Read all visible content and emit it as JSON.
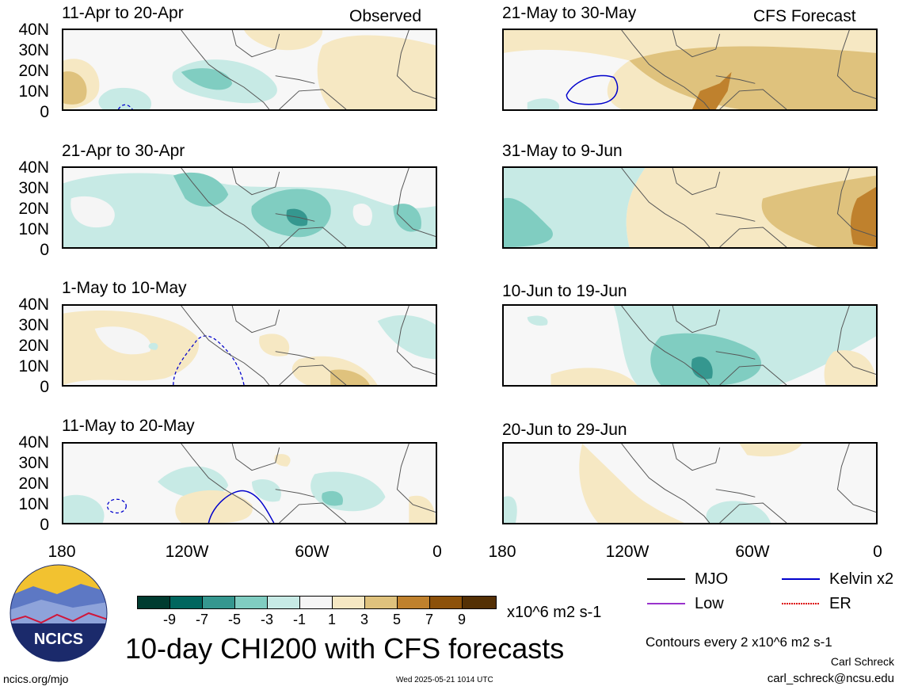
{
  "panels": [
    {
      "id": "p1",
      "label": "11-Apr to 20-Apr",
      "tag": "Observed"
    },
    {
      "id": "p2",
      "label": "21-May to 30-May",
      "tag": "CFS Forecast"
    },
    {
      "id": "p3",
      "label": "21-Apr to 30-Apr",
      "tag": ""
    },
    {
      "id": "p4",
      "label": "31-May to 9-Jun",
      "tag": ""
    },
    {
      "id": "p5",
      "label": "1-May to 10-May",
      "tag": ""
    },
    {
      "id": "p6",
      "label": "10-Jun to 19-Jun",
      "tag": ""
    },
    {
      "id": "p7",
      "label": "11-May to 20-May",
      "tag": ""
    },
    {
      "id": "p8",
      "label": "20-Jun to 29-Jun",
      "tag": ""
    }
  ],
  "lat_labels": [
    "40N",
    "30N",
    "20N",
    "10N",
    "0"
  ],
  "lon_labels": [
    "180",
    "120W",
    "60W",
    "0"
  ],
  "colorbar": {
    "colors": [
      "#003c30",
      "#01665e",
      "#35978f",
      "#80cdc1",
      "#c7eae5",
      "#f5f5f5",
      "#f6e8c3",
      "#dfc27d",
      "#bf812d",
      "#8c510a",
      "#543005"
    ],
    "tick_labels": [
      "-9",
      "-7",
      "-5",
      "-3",
      "-1",
      "1",
      "3",
      "5",
      "7",
      "9"
    ],
    "units": "x10^6 m2 s-1"
  },
  "legend": {
    "mjo": {
      "label": "MJO",
      "color": "#000000"
    },
    "kelvin": {
      "label": "Kelvin x2",
      "color": "#0000cc"
    },
    "low": {
      "label": "Low",
      "color": "#9933cc"
    },
    "er": {
      "label": "ER",
      "color": "#dd0000"
    }
  },
  "title": "10-day CHI200 with CFS forecasts",
  "contours_note": "Contours every 2 x10^6 m2 s-1",
  "author": "Carl Schreck",
  "email": "carl_schreck@ncsu.edu",
  "url": "ncics.org/mjo",
  "timestamp": "Wed 2025-05-21 1014 UTC",
  "logo_text": "NCICS"
}
